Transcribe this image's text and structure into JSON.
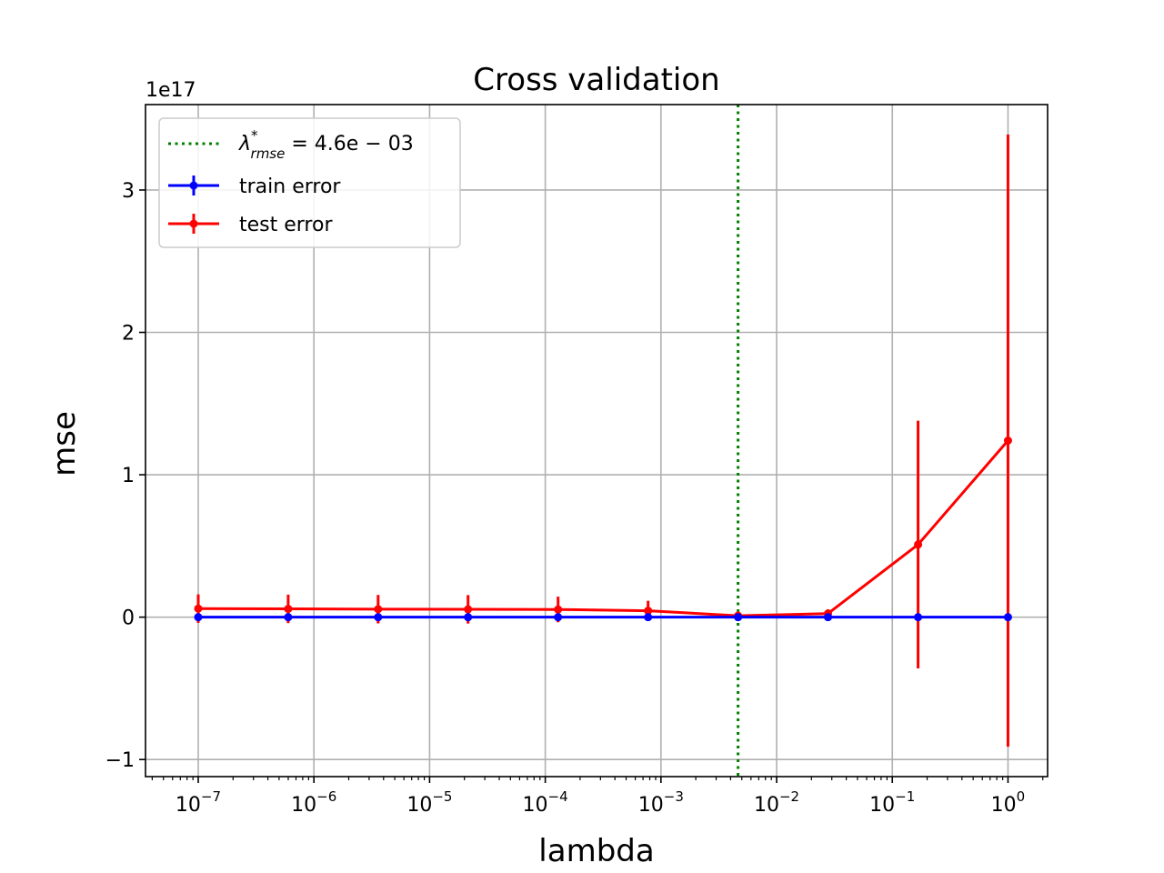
{
  "chart_data": {
    "type": "line",
    "title": "Cross validation",
    "xlabel": "lambda",
    "ylabel": "mse",
    "xscale": "log",
    "y_offset_label": "1e17",
    "xlim": [
      3.5e-08,
      2.2
    ],
    "ylim": [
      -1.12,
      3.6
    ],
    "grid": true,
    "legend_position": "top-left",
    "x_ticks": [
      {
        "base": "10",
        "exp": "−7",
        "value": 1e-07
      },
      {
        "base": "10",
        "exp": "−6",
        "value": 1e-06
      },
      {
        "base": "10",
        "exp": "−5",
        "value": 1e-05
      },
      {
        "base": "10",
        "exp": "−4",
        "value": 0.0001
      },
      {
        "base": "10",
        "exp": "−3",
        "value": 0.001
      },
      {
        "base": "10",
        "exp": "−2",
        "value": 0.01
      },
      {
        "base": "10",
        "exp": "−1",
        "value": 0.1
      },
      {
        "base": "10",
        "exp": "0",
        "value": 1
      }
    ],
    "y_ticks": [
      {
        "label": "−1",
        "value": -1
      },
      {
        "label": "0",
        "value": 0
      },
      {
        "label": "1",
        "value": 1
      },
      {
        "label": "2",
        "value": 2
      },
      {
        "label": "3",
        "value": 3
      }
    ],
    "x": [
      1e-07,
      5.99e-07,
      3.59e-06,
      2.15e-05,
      0.000129,
      0.000774,
      0.00464,
      0.0278,
      0.167,
      1.0
    ],
    "vline": {
      "x": 0.00464,
      "color": "#008000",
      "label_main": "λ",
      "label_sup": "*",
      "label_sub": "rmse",
      "label_rest": " = 4.6e − 03"
    },
    "series": [
      {
        "name": "train error",
        "color": "#0000ff",
        "values": [
          0.0,
          0.0,
          0.0,
          0.0,
          0.0,
          0.0,
          0.0,
          0.0,
          0.0,
          0.0
        ],
        "errors": [
          0.002,
          0.002,
          0.002,
          0.002,
          0.002,
          0.002,
          0.002,
          0.002,
          0.002,
          0.002
        ]
      },
      {
        "name": "test error",
        "color": "#ff0000",
        "values": [
          0.06,
          0.058,
          0.056,
          0.055,
          0.054,
          0.045,
          0.01,
          0.025,
          0.51,
          1.24
        ],
        "errors": [
          0.1,
          0.1,
          0.1,
          0.1,
          0.09,
          0.07,
          0.03,
          0.03,
          0.87,
          2.15
        ]
      }
    ]
  }
}
